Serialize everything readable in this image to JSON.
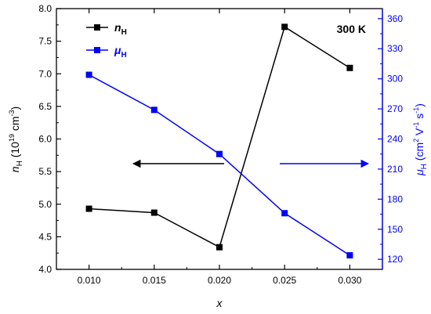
{
  "chart_data": {
    "type": "line",
    "annotation": "300 K",
    "x": [
      0.01,
      0.015,
      0.02,
      0.025,
      0.03
    ],
    "x_ticks": [
      "0.010",
      "0.015",
      "0.020",
      "0.025",
      "0.030"
    ],
    "xlim": [
      0.0075,
      0.0325
    ],
    "xlabel": "x",
    "left_axis": {
      "label": "nH (10^19 cm^-3)",
      "label_parts": {
        "symbol": "n",
        "sub": "H",
        "open": " (10",
        "exp": "19",
        "unit": " cm",
        "unit_exp": "-3",
        "close": ")"
      },
      "ylim": [
        4.0,
        8.0
      ],
      "ticks": [
        "4.0",
        "4.5",
        "5.0",
        "5.5",
        "6.0",
        "6.5",
        "7.0",
        "7.5",
        "8.0"
      ],
      "color": "#000000"
    },
    "right_axis": {
      "label": "μH (cm^2 V^-1 s^-1)",
      "label_parts": {
        "symbol": "μ",
        "sub": "H",
        "open": " (cm",
        "exp1": "2",
        "mid": " V",
        "exp2": "-1",
        "mid2": " s",
        "exp3": "-1",
        "close": ")"
      },
      "ylim": [
        110,
        370
      ],
      "ticks": [
        "120",
        "150",
        "180",
        "210",
        "240",
        "270",
        "300",
        "330",
        "360"
      ],
      "color": "#0000ff"
    },
    "series": [
      {
        "name": "nH",
        "name_symbol": "n",
        "name_sub": "H",
        "axis": "left",
        "color": "#000000",
        "marker": "square",
        "values": [
          4.93,
          4.87,
          4.34,
          7.72,
          7.09
        ]
      },
      {
        "name": "μH",
        "name_symbol": "μ",
        "name_sub": "H",
        "axis": "right",
        "color": "#0000ff",
        "marker": "square",
        "values": [
          304,
          269,
          225,
          166,
          124
        ]
      }
    ],
    "arrows": [
      {
        "points_to": "left",
        "color": "#000000"
      },
      {
        "points_to": "right",
        "color": "#0000ff"
      }
    ],
    "legend": "top-left",
    "grid": false
  }
}
